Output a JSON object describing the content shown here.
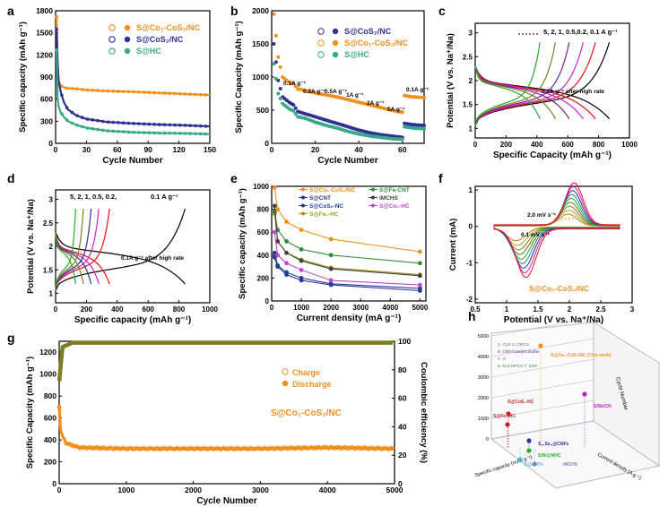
{
  "figure": {
    "panels": [
      "a",
      "b",
      "c",
      "d",
      "e",
      "f",
      "g",
      "h"
    ]
  },
  "colors": {
    "orange": "#f28e1c",
    "blue": "#2e3191",
    "teal": "#3aa78a",
    "olive": "#7d7f1f"
  },
  "chart_data": [
    {
      "id": "a",
      "type": "line",
      "letter": "a",
      "xlabel": "Cycle Number",
      "ylabel": "Specific capacity (mAh g⁻¹)",
      "xlim": [
        0,
        150
      ],
      "ylim": [
        0,
        1800
      ],
      "xticks": [
        0,
        30,
        60,
        90,
        120,
        150
      ],
      "yticks": [
        0,
        300,
        600,
        900,
        1200,
        1500,
        1800
      ],
      "legend": [
        "S@Co₁-CoS₂/NC",
        "S@CoS₂/NC",
        "S@HC"
      ],
      "series": [
        {
          "name": "S@Co₁-CoS₂/NC",
          "color": "orange",
          "x": [
            1,
            2,
            3,
            5,
            10,
            20,
            30,
            50,
            75,
            100,
            125,
            150
          ],
          "y": [
            1720,
            1100,
            850,
            780,
            750,
            740,
            725,
            710,
            700,
            685,
            670,
            655
          ]
        },
        {
          "name": "S@CoS₂/NC",
          "color": "blue",
          "x": [
            1,
            2,
            3,
            5,
            8,
            12,
            20,
            30,
            50,
            75,
            100,
            125,
            150
          ],
          "y": [
            1550,
            1080,
            850,
            700,
            560,
            460,
            380,
            330,
            290,
            270,
            255,
            245,
            230
          ]
        },
        {
          "name": "S@HC",
          "color": "teal",
          "x": [
            1,
            2,
            3,
            5,
            8,
            12,
            20,
            30,
            50,
            75,
            100,
            125,
            150
          ],
          "y": [
            1270,
            620,
            500,
            420,
            360,
            300,
            250,
            210,
            170,
            150,
            140,
            135,
            125
          ]
        }
      ]
    },
    {
      "id": "b",
      "type": "scatter",
      "letter": "b",
      "xlabel": "Cycle Number",
      "ylabel": "Specific Capacity (mAh g⁻¹)",
      "xlim": [
        0,
        70
      ],
      "ylim": [
        0,
        2000
      ],
      "xticks": [
        0,
        20,
        40,
        60
      ],
      "yticks": [
        0,
        500,
        1000,
        1500,
        2000
      ],
      "legend": [
        "S@CoS₂/NC",
        "S@Co₁-CoS₂/NC",
        "S@HC"
      ],
      "rate_labels": [
        "0.1A g⁻¹",
        "0.2A g⁻¹",
        "0.5A g⁻¹",
        "1A g⁻¹",
        "2A g⁻¹",
        "5A g⁻¹",
        "0.1A g⁻¹"
      ],
      "series": [
        {
          "name": "S@Co₁-CoS₂/NC",
          "color": "orange",
          "x": [
            1,
            3,
            5,
            8,
            10,
            12,
            15,
            20,
            25,
            30,
            35,
            40,
            45,
            50,
            55,
            60,
            61,
            65,
            70
          ],
          "y": [
            1950,
            1300,
            1000,
            920,
            900,
            820,
            800,
            760,
            730,
            700,
            660,
            620,
            580,
            540,
            500,
            470,
            720,
            700,
            690
          ]
        },
        {
          "name": "S@CoS₂/NC",
          "color": "blue",
          "x": [
            1,
            3,
            5,
            8,
            10,
            12,
            15,
            20,
            25,
            30,
            35,
            40,
            45,
            50,
            55,
            60,
            61,
            65,
            70
          ],
          "y": [
            1500,
            950,
            700,
            620,
            580,
            480,
            450,
            400,
            350,
            300,
            250,
            200,
            160,
            130,
            110,
            90,
            300,
            280,
            270
          ]
        },
        {
          "name": "S@HC",
          "color": "teal",
          "x": [
            1,
            3,
            5,
            8,
            10,
            12,
            15,
            20,
            25,
            30,
            35,
            40,
            45,
            50,
            55,
            60,
            61,
            65,
            70
          ],
          "y": [
            1200,
            750,
            600,
            520,
            490,
            400,
            380,
            320,
            270,
            230,
            180,
            140,
            110,
            90,
            70,
            60,
            250,
            230,
            220
          ]
        }
      ]
    },
    {
      "id": "c",
      "type": "line",
      "letter": "c",
      "xlabel": "Specific Capacity (mAh g⁻¹)",
      "ylabel": "Potential (V vs. Na⁺/Na)",
      "xlim": [
        0,
        1000
      ],
      "ylim": [
        0.8,
        3.2
      ],
      "xticks": [
        0,
        200,
        400,
        600,
        800,
        1000
      ],
      "yticks": [
        1.0,
        1.5,
        2.0,
        2.5,
        3.0
      ],
      "rates_label": "5,   2,  1,  0.5,0.2, 0.1 A g⁻¹",
      "annotation": "0.1A g⁻¹ after high rate",
      "rates": [
        {
          "rate": "0.1",
          "capacity": 870,
          "color": "#000000"
        },
        {
          "rate": "0.2",
          "capacity": 780,
          "color": "#e8101a"
        },
        {
          "rate": "0.5",
          "capacity": 700,
          "color": "#cc22cc"
        },
        {
          "rate": "1",
          "capacity": 610,
          "color": "#7f1b8f"
        },
        {
          "rate": "2",
          "capacity": 520,
          "color": "#7e7f1f"
        },
        {
          "rate": "5",
          "capacity": 420,
          "color": "#2aa82a"
        }
      ]
    },
    {
      "id": "d",
      "type": "line",
      "letter": "d",
      "xlabel": "Specific capacity (mAh g⁻¹)",
      "ylabel": "Potential (V vs. Na⁺/Na)",
      "xlim": [
        0,
        1000
      ],
      "ylim": [
        0.8,
        3.2
      ],
      "xticks": [
        0,
        200,
        400,
        600,
        800,
        1000
      ],
      "yticks": [
        1.0,
        1.5,
        2.0,
        2.5,
        3.0
      ],
      "rates_label": "5, 2, 1, 0.5,  0.2,",
      "rate_01_label": "0.1 A g⁻¹",
      "annotation": "0.1A g⁻¹ after high rate",
      "rates": [
        {
          "rate": "0.1",
          "capacity": 840,
          "color": "#000000"
        },
        {
          "rate": "0.2",
          "capacity": 350,
          "color": "#e8101a"
        },
        {
          "rate": "0.5",
          "capacity": 280,
          "color": "#cc22cc"
        },
        {
          "rate": "1",
          "capacity": 230,
          "color": "#2e3191"
        },
        {
          "rate": "2",
          "capacity": 180,
          "color": "#7e7f1f"
        },
        {
          "rate": "5",
          "capacity": 130,
          "color": "#2aa82a"
        }
      ]
    },
    {
      "id": "e",
      "type": "line",
      "letter": "e",
      "xlabel": "Current density (mA g⁻¹)",
      "ylabel": "Specific capacity (mAh g⁻¹)",
      "xlim": [
        0,
        5200
      ],
      "ylim": [
        0,
        1000
      ],
      "xticks": [
        0,
        1000,
        2000,
        3000,
        4000,
        5000
      ],
      "yticks": [
        0,
        200,
        400,
        600,
        800,
        1000
      ],
      "x": [
        100,
        200,
        500,
        1000,
        2000,
        5000
      ],
      "series": [
        {
          "name": "S@Co₁-CoS₂/NC",
          "color": "#f28e1c",
          "y": [
            990,
            800,
            690,
            620,
            540,
            430
          ]
        },
        {
          "name": "S@CNT",
          "color": "#2e3191",
          "y": [
            380,
            300,
            230,
            180,
            140,
            90
          ]
        },
        {
          "name": "S@CoS₂-NC",
          "color": "#1f3d9c",
          "y": [
            420,
            310,
            250,
            200,
            150,
            110
          ]
        },
        {
          "name": "S@Fe₁-HC",
          "color": "#9a9a20",
          "y": [
            760,
            520,
            420,
            360,
            290,
            230
          ]
        },
        {
          "name": "S@Fe-CNT",
          "color": "#2f8a3d",
          "y": [
            780,
            620,
            520,
            450,
            400,
            330
          ]
        },
        {
          "name": "iMCHS",
          "color": "#404040",
          "y": [
            830,
            520,
            420,
            350,
            280,
            220
          ]
        },
        {
          "name": "S@Co₁-HC",
          "color": "#c048d0",
          "y": [
            600,
            400,
            330,
            270,
            180,
            140
          ]
        }
      ]
    },
    {
      "id": "f",
      "type": "line",
      "letter": "f",
      "xlabel": "Potential (V vs. Na⁺/Na)",
      "ylabel": "Current (mA)",
      "xlim": [
        0.5,
        3.0
      ],
      "ylim": [
        -2.1,
        1.1
      ],
      "xticks": [
        0.5,
        1.0,
        1.5,
        2.0,
        2.5,
        3.0
      ],
      "yticks": [
        -2,
        -1,
        0,
        1
      ],
      "annotation_high": "2.0 mV s⁻¹",
      "annotation_low": "0.1 mV s⁻¹",
      "label": "S@Co₁-CoS₂/NC",
      "scan_rates": [
        0.1,
        0.2,
        0.3,
        0.5,
        0.7,
        1.0,
        1.2,
        1.5,
        2.0
      ]
    },
    {
      "id": "g",
      "type": "scatter",
      "letter": "g",
      "xlabel": "Cycle Number",
      "ylabel": "Specific Capacity (mAh g⁻¹)",
      "y2label": "Coulombic efficiency (%)",
      "xlim": [
        0,
        5000
      ],
      "ylim": [
        0,
        1300
      ],
      "y2lim": [
        0,
        100
      ],
      "xticks": [
        0,
        1000,
        2000,
        3000,
        4000,
        5000
      ],
      "yticks": [
        0,
        200,
        400,
        600,
        800,
        1000,
        1200
      ],
      "y2ticks": [
        0,
        20,
        40,
        60,
        80,
        100
      ],
      "legend": [
        "Charge",
        "Discharge"
      ],
      "label": "S@Co₁-CoS₂/NC",
      "capacity": {
        "x": [
          1,
          20,
          100,
          300,
          1000,
          2000,
          3000,
          4000,
          5000
        ],
        "y": [
          700,
          480,
          370,
          330,
          320,
          320,
          320,
          330,
          320
        ]
      },
      "efficiency": {
        "x": [
          1,
          50,
          200,
          1000,
          5000
        ],
        "y": [
          72,
          96,
          99,
          99,
          99
        ]
      }
    },
    {
      "id": "h",
      "type": "scatter",
      "letter": "h",
      "ylabel": "Cycle Number",
      "xlabel": "Specific capacity (mAh g⁻¹)",
      "zlabel": "Current density (A g⁻¹)",
      "yticks": [
        0,
        1000,
        2000,
        3000,
        4000,
        5000
      ],
      "legend": [
        "1. CoS 2. CRCS",
        "9. CNF/catalyst Buffer",
        "8. Zr",
        "6. N,S-HPCS 7. ESF"
      ],
      "points": [
        {
          "label": "S@Co₁-CoS₂/NC (This work)",
          "cycles": 5000,
          "color": "#f28e1c"
        },
        {
          "label": "S/Sb/CN",
          "cycles": 2600,
          "color": "#c020c0"
        },
        {
          "label": "S@CoS₂-NC",
          "cycles": 1000,
          "color": "#cc2020"
        },
        {
          "label": "S@Fe₁-HC",
          "cycles": 850,
          "color": "#c02020"
        },
        {
          "label": "S,,,Se,,@CNFs",
          "cycles": 600,
          "color": "#2e3191"
        },
        {
          "label": "S/Ni@NHC",
          "cycles": 450,
          "color": "#2aa82a"
        },
        {
          "label": "S@CNTs",
          "cycles": 300,
          "color": "#40c0e0"
        },
        {
          "label": "iMCHS",
          "cycles": 200,
          "color": "#8080c0"
        }
      ]
    }
  ]
}
